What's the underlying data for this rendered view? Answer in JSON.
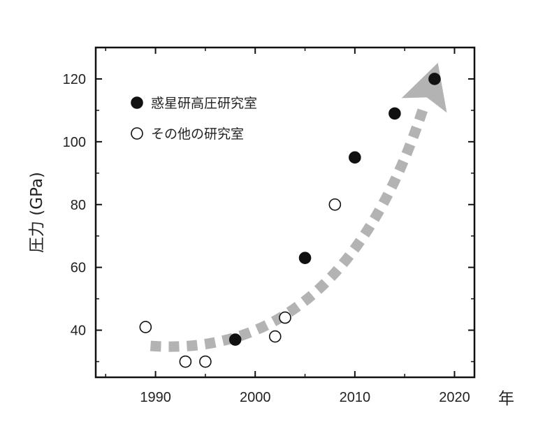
{
  "chart_data": {
    "type": "scatter",
    "xlabel": "年",
    "ylabel": "圧力 (GPa)",
    "xlim": [
      1984,
      2022
    ],
    "ylim": [
      25,
      130
    ],
    "xticks": [
      1990,
      2000,
      2010,
      2020
    ],
    "yticks": [
      40,
      60,
      80,
      100,
      120
    ],
    "grid": false,
    "legend_position": "top-left",
    "series": [
      {
        "name": "惑星研高圧研究室",
        "marker": "filled-circle",
        "color": "#111111",
        "points": [
          {
            "x": 1998,
            "y": 37
          },
          {
            "x": 2005,
            "y": 63
          },
          {
            "x": 2010,
            "y": 95
          },
          {
            "x": 2014,
            "y": 109
          },
          {
            "x": 2018,
            "y": 120
          }
        ]
      },
      {
        "name": "その他の研究室",
        "marker": "open-circle",
        "color": "#111111",
        "points": [
          {
            "x": 1989,
            "y": 41
          },
          {
            "x": 1993,
            "y": 30
          },
          {
            "x": 1995,
            "y": 30
          },
          {
            "x": 2002,
            "y": 38
          },
          {
            "x": 2003,
            "y": 44
          },
          {
            "x": 2008,
            "y": 80
          }
        ]
      }
    ],
    "trend_arrow": {
      "style": "dashed",
      "color": "#b3b3b3",
      "from": {
        "x": 1989.5,
        "y": 35
      },
      "via": {
        "x": 2006,
        "y": 52
      },
      "to": {
        "x": 2017,
        "y": 112
      }
    }
  }
}
